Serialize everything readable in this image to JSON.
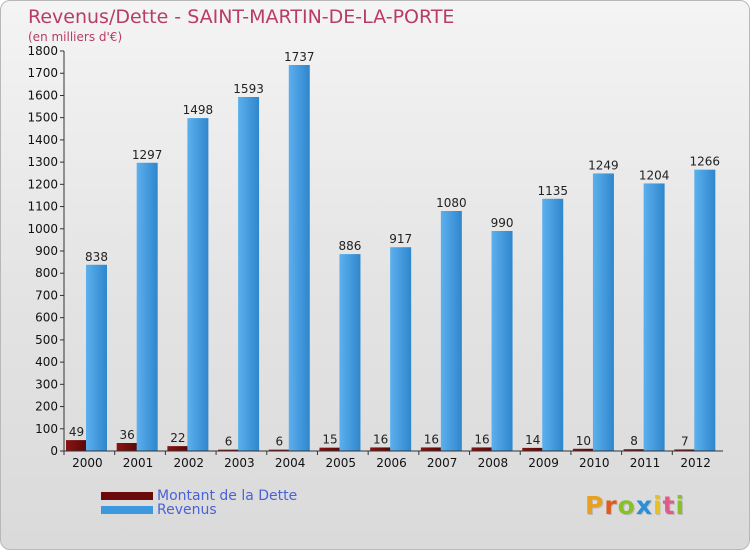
{
  "chart_data": {
    "type": "bar",
    "title": "Revenus/Dette - SAINT-MARTIN-DE-LA-PORTE",
    "subtitle": "(en milliers d'€)",
    "categories": [
      "2000",
      "2001",
      "2002",
      "2003",
      "2004",
      "2005",
      "2006",
      "2007",
      "2008",
      "2009",
      "2010",
      "2011",
      "2012"
    ],
    "series": [
      {
        "name": "Montant de la Dette",
        "color": "#6b0a0a",
        "values": [
          49,
          36,
          22,
          6,
          6,
          15,
          16,
          16,
          16,
          14,
          10,
          8,
          7
        ]
      },
      {
        "name": "Revenus",
        "color": "#3d98de",
        "values": [
          838,
          1297,
          1498,
          1593,
          1737,
          886,
          917,
          1080,
          990,
          1135,
          1249,
          1204,
          1266
        ]
      }
    ],
    "ylim": [
      0,
      1800
    ],
    "yticks": [
      0,
      100,
      200,
      300,
      400,
      500,
      600,
      700,
      800,
      900,
      1000,
      1100,
      1200,
      1300,
      1400,
      1500,
      1600,
      1700,
      1800
    ],
    "xlabel": "",
    "ylabel": "",
    "legend_position": "bottom-left"
  },
  "legend": {
    "debt_label": "Montant de la Dette",
    "revenue_label": "Revenus"
  },
  "brand": {
    "letters": [
      "P",
      "r",
      "o",
      "x",
      "i",
      "t",
      "i"
    ],
    "colors": [
      "#e8a020",
      "#e05a1e",
      "#8bbf2a",
      "#2a8fd6",
      "#e8c020",
      "#e05a8a",
      "#8bbf2a"
    ]
  }
}
